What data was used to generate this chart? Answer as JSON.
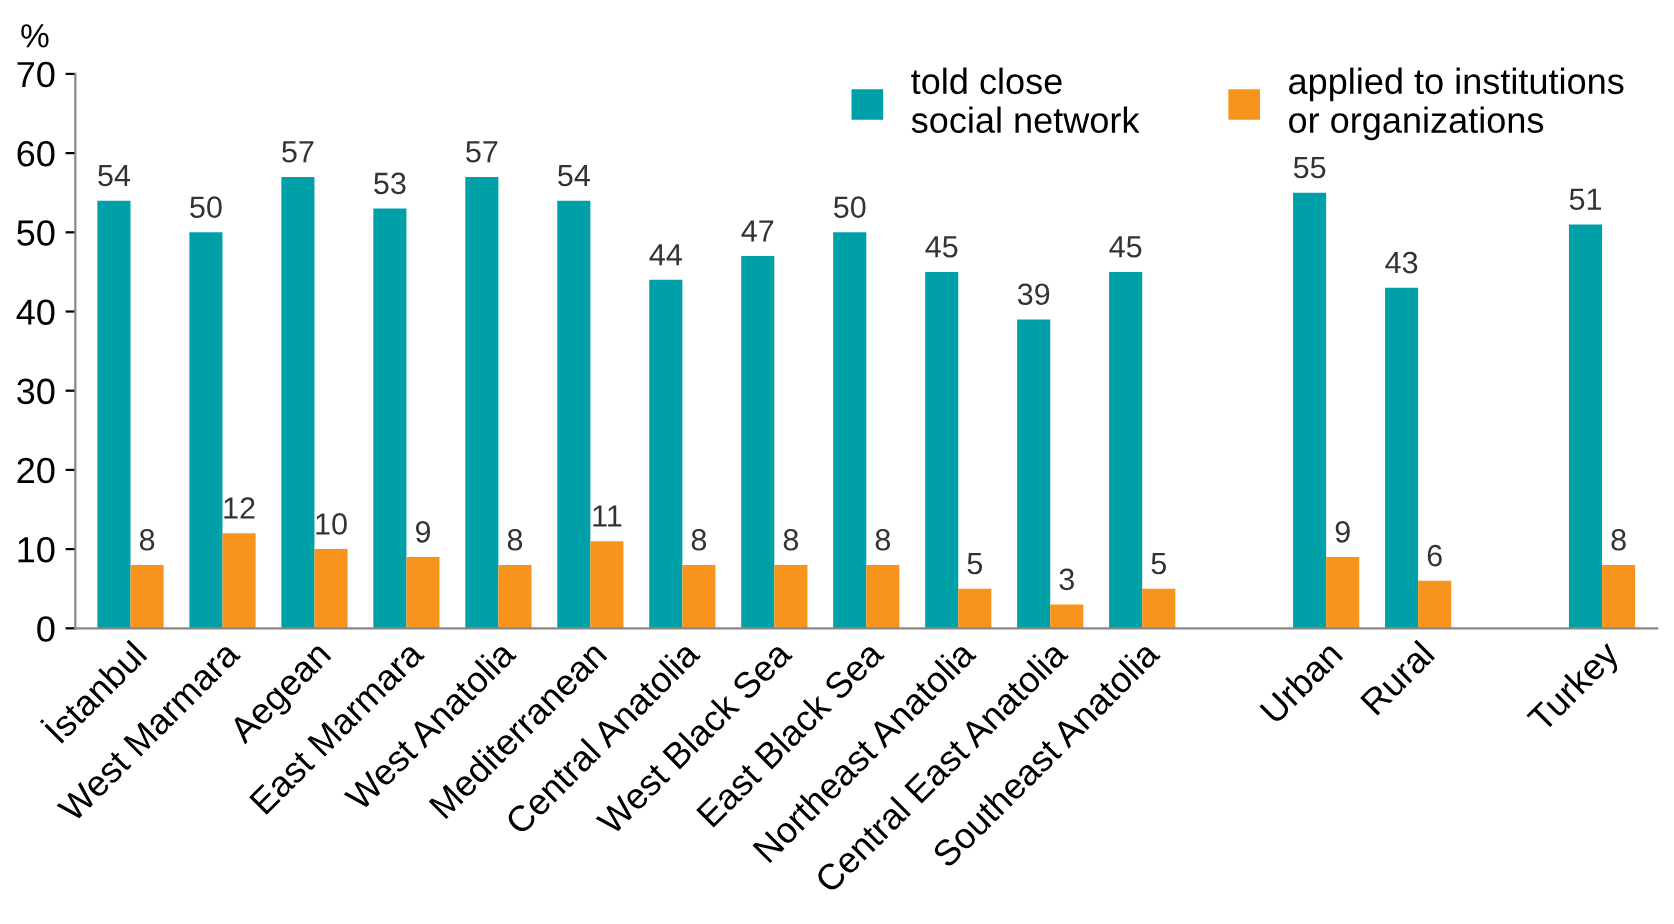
{
  "chart_data": {
    "type": "bar",
    "ylabel": "%",
    "categories": [
      "İstanbul",
      "West Marmara",
      "Aegean",
      "East Marmara",
      "West Anatolia",
      "Mediterranean",
      "Central Anatolia",
      "West Black Sea",
      "East Black Sea",
      "Northeast Anatolia",
      "Central East Anatolia",
      "Southeast Anatolia",
      null,
      "Urban",
      "Rural",
      null,
      "Turkey"
    ],
    "series": [
      {
        "name": "told close social network",
        "color": "#00a0a8",
        "values": [
          54,
          50,
          57,
          53,
          57,
          54,
          44,
          47,
          50,
          45,
          39,
          45,
          null,
          55,
          43,
          null,
          51
        ]
      },
      {
        "name": "applied to institutions or organizations",
        "color": "#f7941d",
        "values": [
          8,
          12,
          10,
          9,
          8,
          11,
          8,
          8,
          8,
          5,
          3,
          5,
          null,
          9,
          6,
          null,
          8
        ]
      }
    ],
    "ylim": [
      0,
      70
    ],
    "yticks": [
      0,
      10,
      20,
      30,
      40,
      50,
      60,
      70
    ],
    "grid": false,
    "legend": "top right",
    "data_labels": true
  }
}
